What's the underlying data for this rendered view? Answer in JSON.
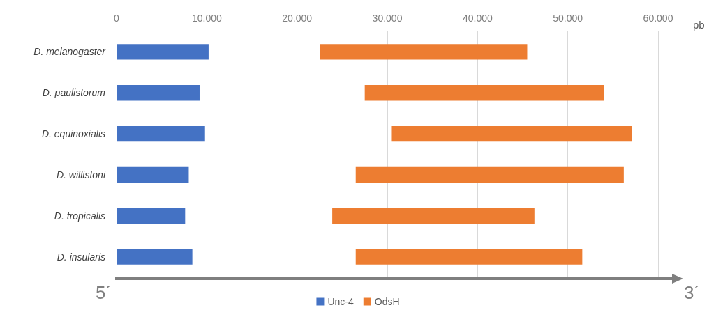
{
  "chart_data": {
    "type": "bar",
    "orientation": "horizontal",
    "xlabel": "pb",
    "categories": [
      "D. melanogaster",
      "D. paulistorum",
      "D. equinoxialis",
      "D. willistoni",
      "D. tropicalis",
      "D. insularis"
    ],
    "series": [
      {
        "name": "Unc-4",
        "color": "#4472c4",
        "base": [
          0,
          0,
          0,
          0,
          0,
          0
        ],
        "values": [
          10200,
          9200,
          9800,
          8000,
          7600,
          8400
        ]
      },
      {
        "name": "OdsH",
        "color": "#ed7d31",
        "base": [
          22500,
          27500,
          30500,
          26500,
          23900,
          26500
        ],
        "values": [
          23000,
          26500,
          26600,
          29700,
          22400,
          25100
        ]
      }
    ],
    "xlim": [
      0,
      60000
    ],
    "xticks": [
      0,
      {
        "value": 10000,
        "label": "10.000"
      },
      {
        "value": 20000,
        "label": "20.000"
      },
      {
        "value": 30000,
        "label": "30.000"
      },
      {
        "value": 40000,
        "label": "40.000"
      },
      {
        "value": 50000,
        "label": "50.000"
      },
      {
        "value": 60000,
        "label": "60.000"
      }
    ],
    "grid": "x",
    "legend": "bottom",
    "annotations": [
      "5´",
      "3´"
    ]
  }
}
